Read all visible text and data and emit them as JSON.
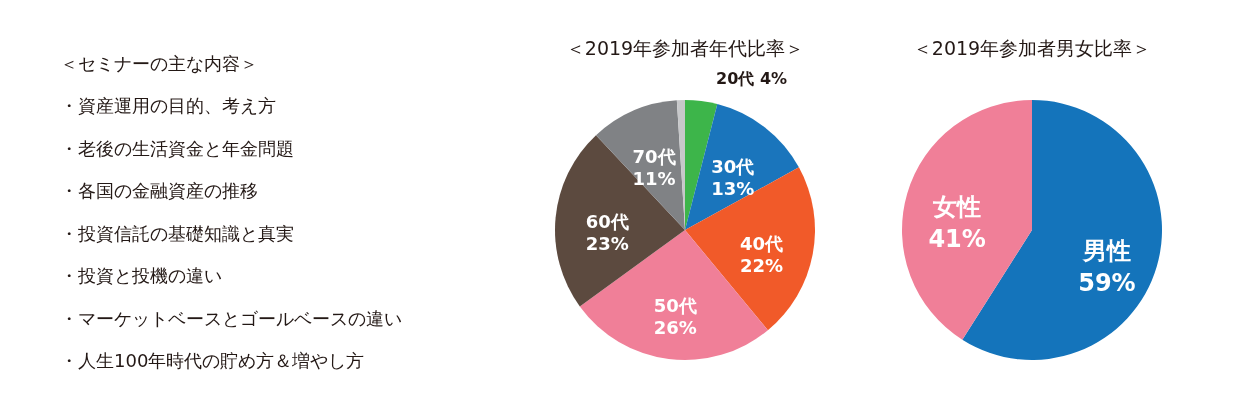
{
  "chart_data": [
    {
      "type": "other",
      "title": "＜セミナーの主な内容＞",
      "annotations": [
        "・資産運用の目的、考え方",
        "・老後の生活資金と年金問題",
        "・各国の金融資産の推移",
        "・投資信託の基礎知識と真実",
        "・投資と投機の違い",
        "・マーケットベースとゴールベースの違い",
        "・人生100年時代の貯め方＆増やし方"
      ]
    },
    {
      "type": "pie",
      "title": "＜2019年参加者年代比率＞",
      "categories": [
        "20代",
        "30代",
        "40代",
        "50代",
        "60代",
        "70代",
        null
      ],
      "values": [
        4,
        13,
        22,
        26,
        23,
        11,
        1
      ],
      "colors": [
        "#3db54a",
        "#1a75bc",
        "#f15a29",
        "#f07f98",
        "#5c4a3f",
        "#808285",
        "#c7c8ca"
      ],
      "value_labels": [
        "4%",
        "13%",
        "22%",
        "26%",
        "23%",
        "11%",
        null
      ]
    },
    {
      "type": "pie",
      "title": "＜2019年参加者男女比率＞",
      "categories": [
        "男性",
        "女性"
      ],
      "values": [
        59,
        41
      ],
      "colors": [
        "#1474bb",
        "#f07f98"
      ],
      "value_labels": [
        "59%",
        "41%"
      ]
    }
  ]
}
